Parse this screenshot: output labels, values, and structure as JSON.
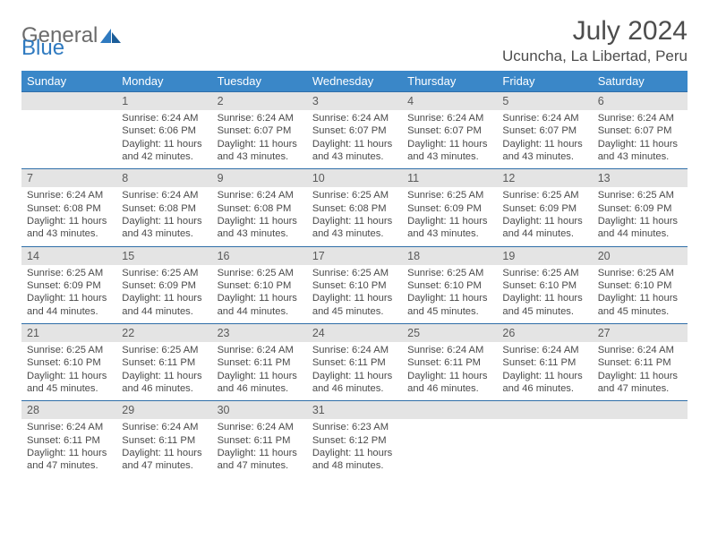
{
  "logo": {
    "text1": "General",
    "text2": "Blue"
  },
  "title": "July 2024",
  "location": "Ucuncha, La Libertad, Peru",
  "colors": {
    "header_bg": "#3a87c8",
    "header_text": "#ffffff",
    "daynum_bg": "#e4e4e4",
    "border_top": "#2f6ea8",
    "text": "#4a4a4a",
    "title_color": "#4d4d4d",
    "logo_gray": "#6b6b6b",
    "logo_blue": "#2f7ac0"
  },
  "weekdays": [
    "Sunday",
    "Monday",
    "Tuesday",
    "Wednesday",
    "Thursday",
    "Friday",
    "Saturday"
  ],
  "weeks": [
    {
      "nums": [
        "",
        "1",
        "2",
        "3",
        "4",
        "5",
        "6"
      ],
      "cells": [
        null,
        {
          "sunrise": "Sunrise: 6:24 AM",
          "sunset": "Sunset: 6:06 PM",
          "day1": "Daylight: 11 hours",
          "day2": "and 42 minutes."
        },
        {
          "sunrise": "Sunrise: 6:24 AM",
          "sunset": "Sunset: 6:07 PM",
          "day1": "Daylight: 11 hours",
          "day2": "and 43 minutes."
        },
        {
          "sunrise": "Sunrise: 6:24 AM",
          "sunset": "Sunset: 6:07 PM",
          "day1": "Daylight: 11 hours",
          "day2": "and 43 minutes."
        },
        {
          "sunrise": "Sunrise: 6:24 AM",
          "sunset": "Sunset: 6:07 PM",
          "day1": "Daylight: 11 hours",
          "day2": "and 43 minutes."
        },
        {
          "sunrise": "Sunrise: 6:24 AM",
          "sunset": "Sunset: 6:07 PM",
          "day1": "Daylight: 11 hours",
          "day2": "and 43 minutes."
        },
        {
          "sunrise": "Sunrise: 6:24 AM",
          "sunset": "Sunset: 6:07 PM",
          "day1": "Daylight: 11 hours",
          "day2": "and 43 minutes."
        }
      ]
    },
    {
      "nums": [
        "7",
        "8",
        "9",
        "10",
        "11",
        "12",
        "13"
      ],
      "cells": [
        {
          "sunrise": "Sunrise: 6:24 AM",
          "sunset": "Sunset: 6:08 PM",
          "day1": "Daylight: 11 hours",
          "day2": "and 43 minutes."
        },
        {
          "sunrise": "Sunrise: 6:24 AM",
          "sunset": "Sunset: 6:08 PM",
          "day1": "Daylight: 11 hours",
          "day2": "and 43 minutes."
        },
        {
          "sunrise": "Sunrise: 6:24 AM",
          "sunset": "Sunset: 6:08 PM",
          "day1": "Daylight: 11 hours",
          "day2": "and 43 minutes."
        },
        {
          "sunrise": "Sunrise: 6:25 AM",
          "sunset": "Sunset: 6:08 PM",
          "day1": "Daylight: 11 hours",
          "day2": "and 43 minutes."
        },
        {
          "sunrise": "Sunrise: 6:25 AM",
          "sunset": "Sunset: 6:09 PM",
          "day1": "Daylight: 11 hours",
          "day2": "and 43 minutes."
        },
        {
          "sunrise": "Sunrise: 6:25 AM",
          "sunset": "Sunset: 6:09 PM",
          "day1": "Daylight: 11 hours",
          "day2": "and 44 minutes."
        },
        {
          "sunrise": "Sunrise: 6:25 AM",
          "sunset": "Sunset: 6:09 PM",
          "day1": "Daylight: 11 hours",
          "day2": "and 44 minutes."
        }
      ]
    },
    {
      "nums": [
        "14",
        "15",
        "16",
        "17",
        "18",
        "19",
        "20"
      ],
      "cells": [
        {
          "sunrise": "Sunrise: 6:25 AM",
          "sunset": "Sunset: 6:09 PM",
          "day1": "Daylight: 11 hours",
          "day2": "and 44 minutes."
        },
        {
          "sunrise": "Sunrise: 6:25 AM",
          "sunset": "Sunset: 6:09 PM",
          "day1": "Daylight: 11 hours",
          "day2": "and 44 minutes."
        },
        {
          "sunrise": "Sunrise: 6:25 AM",
          "sunset": "Sunset: 6:10 PM",
          "day1": "Daylight: 11 hours",
          "day2": "and 44 minutes."
        },
        {
          "sunrise": "Sunrise: 6:25 AM",
          "sunset": "Sunset: 6:10 PM",
          "day1": "Daylight: 11 hours",
          "day2": "and 45 minutes."
        },
        {
          "sunrise": "Sunrise: 6:25 AM",
          "sunset": "Sunset: 6:10 PM",
          "day1": "Daylight: 11 hours",
          "day2": "and 45 minutes."
        },
        {
          "sunrise": "Sunrise: 6:25 AM",
          "sunset": "Sunset: 6:10 PM",
          "day1": "Daylight: 11 hours",
          "day2": "and 45 minutes."
        },
        {
          "sunrise": "Sunrise: 6:25 AM",
          "sunset": "Sunset: 6:10 PM",
          "day1": "Daylight: 11 hours",
          "day2": "and 45 minutes."
        }
      ]
    },
    {
      "nums": [
        "21",
        "22",
        "23",
        "24",
        "25",
        "26",
        "27"
      ],
      "cells": [
        {
          "sunrise": "Sunrise: 6:25 AM",
          "sunset": "Sunset: 6:10 PM",
          "day1": "Daylight: 11 hours",
          "day2": "and 45 minutes."
        },
        {
          "sunrise": "Sunrise: 6:25 AM",
          "sunset": "Sunset: 6:11 PM",
          "day1": "Daylight: 11 hours",
          "day2": "and 46 minutes."
        },
        {
          "sunrise": "Sunrise: 6:24 AM",
          "sunset": "Sunset: 6:11 PM",
          "day1": "Daylight: 11 hours",
          "day2": "and 46 minutes."
        },
        {
          "sunrise": "Sunrise: 6:24 AM",
          "sunset": "Sunset: 6:11 PM",
          "day1": "Daylight: 11 hours",
          "day2": "and 46 minutes."
        },
        {
          "sunrise": "Sunrise: 6:24 AM",
          "sunset": "Sunset: 6:11 PM",
          "day1": "Daylight: 11 hours",
          "day2": "and 46 minutes."
        },
        {
          "sunrise": "Sunrise: 6:24 AM",
          "sunset": "Sunset: 6:11 PM",
          "day1": "Daylight: 11 hours",
          "day2": "and 46 minutes."
        },
        {
          "sunrise": "Sunrise: 6:24 AM",
          "sunset": "Sunset: 6:11 PM",
          "day1": "Daylight: 11 hours",
          "day2": "and 47 minutes."
        }
      ]
    },
    {
      "nums": [
        "28",
        "29",
        "30",
        "31",
        "",
        "",
        ""
      ],
      "cells": [
        {
          "sunrise": "Sunrise: 6:24 AM",
          "sunset": "Sunset: 6:11 PM",
          "day1": "Daylight: 11 hours",
          "day2": "and 47 minutes."
        },
        {
          "sunrise": "Sunrise: 6:24 AM",
          "sunset": "Sunset: 6:11 PM",
          "day1": "Daylight: 11 hours",
          "day2": "and 47 minutes."
        },
        {
          "sunrise": "Sunrise: 6:24 AM",
          "sunset": "Sunset: 6:11 PM",
          "day1": "Daylight: 11 hours",
          "day2": "and 47 minutes."
        },
        {
          "sunrise": "Sunrise: 6:23 AM",
          "sunset": "Sunset: 6:12 PM",
          "day1": "Daylight: 11 hours",
          "day2": "and 48 minutes."
        },
        null,
        null,
        null
      ]
    }
  ]
}
